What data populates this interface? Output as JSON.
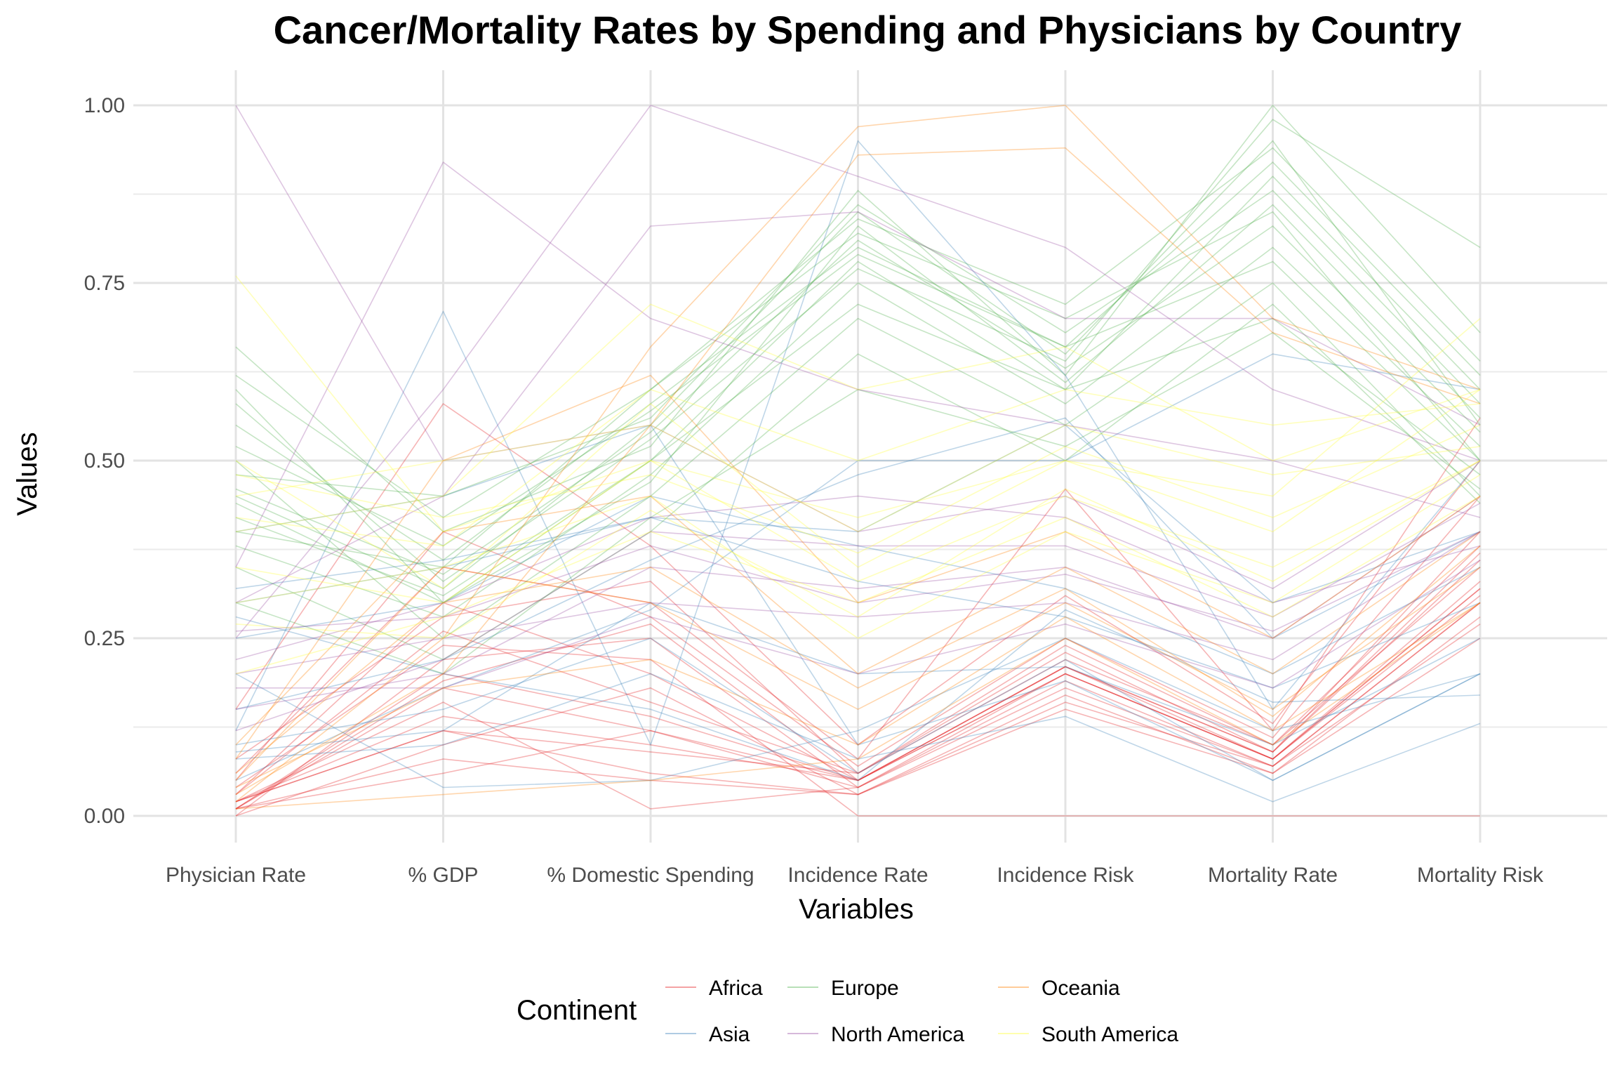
{
  "chart_data": {
    "type": "line",
    "subtype": "parallel-coordinates",
    "title": "Cancer/Mortality Rates by Spending and Physicians by Country",
    "xlabel": "Variables",
    "ylabel": "Values",
    "ylim": [
      0,
      1
    ],
    "y_ticks": [
      "0.00",
      "0.25",
      "0.50",
      "0.75",
      "1.00"
    ],
    "grid": true,
    "categories": [
      "Physician Rate",
      "% GDP",
      "% Domestic Spending",
      "Incidence Rate",
      "Incidence Risk",
      "Mortality Rate",
      "Mortality Risk"
    ],
    "legend": {
      "title": "Continent",
      "placement": "bottom",
      "entries": [
        {
          "name": "Africa",
          "color": "#e41a1c"
        },
        {
          "name": "Asia",
          "color": "#377eb8"
        },
        {
          "name": "Europe",
          "color": "#4daf4a"
        },
        {
          "name": "North America",
          "color": "#984ea3"
        },
        {
          "name": "Oceania",
          "color": "#ff7f00"
        },
        {
          "name": "South America",
          "color": "#ffff33"
        }
      ]
    },
    "series": [
      {
        "group": "Africa",
        "values": [
          0.01,
          0.18,
          0.12,
          0.05,
          0.2,
          0.08,
          0.32
        ]
      },
      {
        "group": "Africa",
        "values": [
          0.0,
          0.22,
          0.25,
          0.04,
          0.19,
          0.07,
          0.3
        ]
      },
      {
        "group": "Africa",
        "values": [
          0.02,
          0.12,
          0.09,
          0.06,
          0.22,
          0.1,
          0.35
        ]
      },
      {
        "group": "Africa",
        "values": [
          0.03,
          0.3,
          0.2,
          0.05,
          0.21,
          0.09,
          0.4
        ]
      },
      {
        "group": "Africa",
        "values": [
          0.01,
          0.08,
          0.05,
          0.03,
          0.15,
          0.06,
          0.28
        ]
      },
      {
        "group": "Africa",
        "values": [
          0.05,
          0.4,
          0.28,
          0.07,
          0.25,
          0.11,
          0.45
        ]
      },
      {
        "group": "Africa",
        "values": [
          0.02,
          0.16,
          0.01,
          0.04,
          0.18,
          0.07,
          0.3
        ]
      },
      {
        "group": "Africa",
        "values": [
          0.08,
          0.28,
          0.33,
          0.06,
          0.24,
          0.1,
          0.38
        ]
      },
      {
        "group": "Africa",
        "values": [
          0.01,
          0.2,
          0.14,
          0.05,
          0.2,
          0.08,
          0.33
        ]
      },
      {
        "group": "Africa",
        "values": [
          0.15,
          0.58,
          0.38,
          0.1,
          0.31,
          0.13,
          0.5
        ]
      },
      {
        "group": "Africa",
        "values": [
          0.0,
          0.1,
          0.18,
          0.03,
          0.17,
          0.06,
          0.25
        ]
      },
      {
        "group": "Africa",
        "values": [
          0.04,
          0.24,
          0.22,
          0.0,
          0.0,
          0.0,
          0.0
        ]
      },
      {
        "group": "Africa",
        "values": [
          0.02,
          0.14,
          0.1,
          0.05,
          0.21,
          0.09,
          0.36
        ]
      },
      {
        "group": "Africa",
        "values": [
          0.06,
          0.35,
          0.3,
          0.08,
          0.46,
          0.12,
          0.56
        ]
      },
      {
        "group": "Africa",
        "values": [
          0.01,
          0.06,
          0.12,
          0.04,
          0.2,
          0.08,
          0.31
        ]
      },
      {
        "group": "Africa",
        "values": [
          0.03,
          0.26,
          0.16,
          0.06,
          0.23,
          0.09,
          0.37
        ]
      },
      {
        "group": "Africa",
        "values": [
          0.01,
          0.19,
          0.27,
          0.05,
          0.21,
          0.08,
          0.32
        ]
      },
      {
        "group": "Africa",
        "values": [
          0.02,
          0.12,
          0.06,
          0.03,
          0.16,
          0.07,
          0.27
        ]
      },
      {
        "group": "Asia",
        "values": [
          0.1,
          0.15,
          0.25,
          0.06,
          0.22,
          0.05,
          0.2
        ]
      },
      {
        "group": "Asia",
        "values": [
          0.3,
          0.35,
          0.42,
          0.4,
          0.55,
          0.3,
          0.4
        ]
      },
      {
        "group": "Asia",
        "values": [
          0.12,
          0.71,
          0.1,
          0.95,
          0.62,
          0.15,
          0.5
        ]
      },
      {
        "group": "Asia",
        "values": [
          0.08,
          0.1,
          0.2,
          0.08,
          0.14,
          0.02,
          0.13
        ]
      },
      {
        "group": "Asia",
        "values": [
          0.25,
          0.3,
          0.45,
          0.38,
          0.32,
          0.2,
          0.35
        ]
      },
      {
        "group": "Asia",
        "values": [
          0.2,
          0.04,
          0.05,
          0.12,
          0.25,
          0.12,
          0.2
        ]
      },
      {
        "group": "Asia",
        "values": [
          0.05,
          0.18,
          0.29,
          0.5,
          0.5,
          0.65,
          0.6
        ]
      },
      {
        "group": "Asia",
        "values": [
          0.32,
          0.36,
          0.42,
          0.33,
          0.28,
          0.18,
          0.3
        ]
      },
      {
        "group": "Asia",
        "values": [
          0.09,
          0.12,
          0.3,
          0.2,
          0.21,
          0.1,
          0.25
        ]
      },
      {
        "group": "Asia",
        "values": [
          0.15,
          0.22,
          0.36,
          0.48,
          0.56,
          0.25,
          0.4
        ]
      },
      {
        "group": "Asia",
        "values": [
          0.28,
          0.2,
          0.15,
          0.05,
          0.29,
          0.16,
          0.17
        ]
      },
      {
        "group": "Asia",
        "values": [
          0.4,
          0.45,
          0.55,
          0.1,
          0.19,
          0.05,
          0.2
        ]
      },
      {
        "group": "Europe",
        "values": [
          0.45,
          0.32,
          0.55,
          0.85,
          0.65,
          0.95,
          0.55
        ]
      },
      {
        "group": "Europe",
        "values": [
          0.6,
          0.3,
          0.5,
          0.78,
          0.6,
          0.9,
          0.6
        ]
      },
      {
        "group": "Europe",
        "values": [
          0.4,
          0.35,
          0.6,
          0.82,
          0.7,
          0.85,
          0.5
        ]
      },
      {
        "group": "Europe",
        "values": [
          0.5,
          0.25,
          0.45,
          0.7,
          0.55,
          0.75,
          0.45
        ]
      },
      {
        "group": "Europe",
        "values": [
          0.66,
          0.4,
          0.52,
          0.88,
          0.62,
          1.0,
          0.68
        ]
      },
      {
        "group": "Europe",
        "values": [
          0.38,
          0.28,
          0.48,
          0.75,
          0.58,
          0.8,
          0.52
        ]
      },
      {
        "group": "Europe",
        "values": [
          0.55,
          0.36,
          0.58,
          0.8,
          0.66,
          0.92,
          0.62
        ]
      },
      {
        "group": "Europe",
        "values": [
          0.42,
          0.31,
          0.5,
          0.72,
          0.6,
          0.7,
          0.48
        ]
      },
      {
        "group": "Europe",
        "values": [
          0.48,
          0.45,
          0.56,
          0.86,
          0.68,
          0.88,
          0.58
        ]
      },
      {
        "group": "Europe",
        "values": [
          0.35,
          0.22,
          0.4,
          0.65,
          0.5,
          0.72,
          0.44
        ]
      },
      {
        "group": "Europe",
        "values": [
          0.58,
          0.33,
          0.53,
          0.77,
          0.64,
          0.98,
          0.8
        ]
      },
      {
        "group": "Europe",
        "values": [
          0.44,
          0.3,
          0.47,
          0.83,
          0.61,
          0.86,
          0.56
        ]
      },
      {
        "group": "Europe",
        "values": [
          0.52,
          0.38,
          0.57,
          0.79,
          0.66,
          0.78,
          0.5
        ]
      },
      {
        "group": "Europe",
        "values": [
          0.3,
          0.2,
          0.42,
          0.6,
          0.52,
          0.68,
          0.46
        ]
      },
      {
        "group": "Europe",
        "values": [
          0.62,
          0.42,
          0.6,
          0.84,
          0.72,
          0.94,
          0.64
        ]
      },
      {
        "group": "Europe",
        "values": [
          0.46,
          0.34,
          0.54,
          0.81,
          0.63,
          0.83,
          0.54
        ]
      },
      {
        "group": "North America",
        "values": [
          0.25,
          0.6,
          1.0,
          0.9,
          0.8,
          0.6,
          0.5
        ]
      },
      {
        "group": "North America",
        "values": [
          0.3,
          0.45,
          0.83,
          0.85,
          0.7,
          0.7,
          0.55
        ]
      },
      {
        "group": "North America",
        "values": [
          0.2,
          0.25,
          0.3,
          0.28,
          0.3,
          0.22,
          0.4
        ]
      },
      {
        "group": "North America",
        "values": [
          0.15,
          0.2,
          0.35,
          0.32,
          0.35,
          0.25,
          0.45
        ]
      },
      {
        "group": "North America",
        "values": [
          0.22,
          0.3,
          0.42,
          0.45,
          0.42,
          0.3,
          0.38
        ]
      },
      {
        "group": "North America",
        "values": [
          0.18,
          0.18,
          0.28,
          0.2,
          0.27,
          0.18,
          0.36
        ]
      },
      {
        "group": "North America",
        "values": [
          0.35,
          0.92,
          0.7,
          0.6,
          0.55,
          0.5,
          0.42
        ]
      },
      {
        "group": "North America",
        "values": [
          0.12,
          0.22,
          0.4,
          0.38,
          0.38,
          0.28,
          0.44
        ]
      },
      {
        "group": "North America",
        "values": [
          0.26,
          0.28,
          0.38,
          0.3,
          0.34,
          0.26,
          0.4
        ]
      },
      {
        "group": "North America",
        "values": [
          1.0,
          0.5,
          0.55,
          0.4,
          0.45,
          0.32,
          0.5
        ]
      },
      {
        "group": "Oceania",
        "values": [
          0.02,
          0.25,
          0.66,
          0.97,
          1.0,
          0.7,
          0.6
        ]
      },
      {
        "group": "Oceania",
        "values": [
          0.03,
          0.2,
          0.55,
          0.93,
          0.94,
          0.68,
          0.58
        ]
      },
      {
        "group": "Oceania",
        "values": [
          0.05,
          0.35,
          0.3,
          0.15,
          0.3,
          0.15,
          0.35
        ]
      },
      {
        "group": "Oceania",
        "values": [
          0.1,
          0.4,
          0.45,
          0.2,
          0.35,
          0.2,
          0.4
        ]
      },
      {
        "group": "Oceania",
        "values": [
          0.04,
          0.18,
          0.22,
          0.1,
          0.28,
          0.12,
          0.3
        ]
      },
      {
        "group": "Oceania",
        "values": [
          0.01,
          0.03,
          0.05,
          0.08,
          0.25,
          0.1,
          0.3
        ]
      },
      {
        "group": "Oceania",
        "values": [
          0.08,
          0.5,
          0.62,
          0.3,
          0.4,
          0.25,
          0.45
        ]
      },
      {
        "group": "Oceania",
        "values": [
          0.06,
          0.3,
          0.35,
          0.18,
          0.32,
          0.14,
          0.38
        ]
      },
      {
        "group": "South America",
        "values": [
          0.76,
          0.4,
          0.5,
          0.42,
          0.5,
          0.45,
          0.7
        ]
      },
      {
        "group": "South America",
        "values": [
          0.4,
          0.45,
          0.72,
          0.6,
          0.66,
          0.5,
          0.6
        ]
      },
      {
        "group": "South America",
        "values": [
          0.35,
          0.3,
          0.5,
          0.33,
          0.45,
          0.35,
          0.5
        ]
      },
      {
        "group": "South America",
        "values": [
          0.45,
          0.5,
          0.55,
          0.4,
          0.55,
          0.48,
          0.52
        ]
      },
      {
        "group": "South America",
        "values": [
          0.3,
          0.35,
          0.45,
          0.25,
          0.4,
          0.3,
          0.48
        ]
      },
      {
        "group": "South America",
        "values": [
          0.48,
          0.42,
          0.48,
          0.37,
          0.52,
          0.42,
          0.55
        ]
      },
      {
        "group": "South America",
        "values": [
          0.2,
          0.28,
          0.4,
          0.3,
          0.42,
          0.28,
          0.45
        ]
      },
      {
        "group": "South America",
        "values": [
          0.42,
          0.38,
          0.6,
          0.5,
          0.6,
          0.55,
          0.58
        ]
      },
      {
        "group": "South America",
        "values": [
          0.5,
          0.32,
          0.58,
          0.35,
          0.5,
          0.4,
          0.6
        ]
      },
      {
        "group": "South America",
        "values": [
          0.27,
          0.25,
          0.43,
          0.28,
          0.46,
          0.33,
          0.5
        ]
      }
    ]
  }
}
